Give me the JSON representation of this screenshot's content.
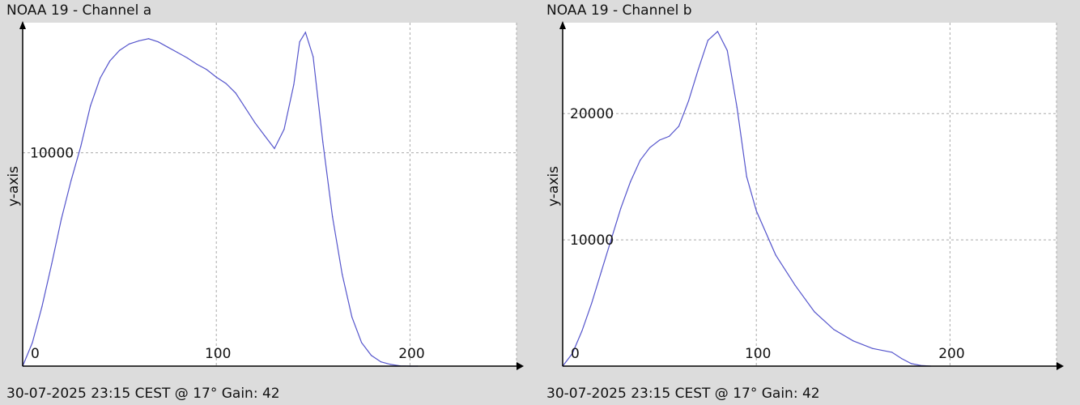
{
  "charts": [
    {
      "title": "NOAA 19 - Channel a",
      "footer": "30-07-2025 23:15 CEST @ 17° Gain: 42"
    },
    {
      "title": "NOAA 19 - Channel b",
      "footer": "30-07-2025 23:15 CEST @ 17° Gain: 42"
    }
  ],
  "colors": {
    "background": "#dcdcdc",
    "plot_area": "#ffffff",
    "line": "#5555cc",
    "grid": "#aaaaaa",
    "axis": "#000000"
  },
  "chart_data": [
    {
      "type": "line",
      "title": "NOAA 19 - Channel a",
      "ylabel": "y-axis",
      "xlabel": "",
      "xlim": [
        0,
        255
      ],
      "ylim": [
        0,
        16100
      ],
      "x_ticks": [
        0,
        100,
        200
      ],
      "y_ticks": [
        10000
      ],
      "grid": true,
      "series": [
        {
          "x": [
            0,
            5,
            10,
            15,
            20,
            25,
            30,
            35,
            40,
            45,
            50,
            55,
            60,
            65,
            70,
            75,
            80,
            85,
            90,
            95,
            100,
            105,
            110,
            115,
            120,
            125,
            130,
            135,
            140,
            143,
            146,
            150,
            155,
            160,
            165,
            170,
            175,
            180,
            185,
            190,
            195,
            200,
            204
          ],
          "values": [
            0,
            1100,
            2800,
            4800,
            6900,
            8700,
            10300,
            12200,
            13500,
            14300,
            14800,
            15100,
            15250,
            15350,
            15200,
            14950,
            14700,
            14450,
            14150,
            13900,
            13550,
            13250,
            12800,
            12100,
            11400,
            10800,
            10200,
            11100,
            13200,
            15200,
            15650,
            14500,
            10500,
            7000,
            4300,
            2300,
            1100,
            500,
            200,
            80,
            10,
            0,
            0
          ]
        }
      ]
    },
    {
      "type": "line",
      "title": "NOAA 19 - Channel b",
      "ylabel": "y-axis",
      "xlabel": "",
      "xlim": [
        0,
        255
      ],
      "ylim": [
        0,
        27200
      ],
      "x_ticks": [
        0,
        100,
        200
      ],
      "y_ticks": [
        10000,
        20000
      ],
      "grid": true,
      "series": [
        {
          "x": [
            0,
            5,
            10,
            15,
            20,
            25,
            30,
            35,
            40,
            45,
            50,
            55,
            60,
            65,
            70,
            75,
            80,
            85,
            90,
            95,
            100,
            110,
            120,
            130,
            140,
            150,
            160,
            170,
            175,
            180,
            185,
            190
          ],
          "values": [
            0,
            1000,
            2800,
            5000,
            7500,
            10000,
            12500,
            14600,
            16300,
            17300,
            17900,
            18200,
            19000,
            21000,
            23500,
            25800,
            26500,
            25000,
            20500,
            15000,
            12300,
            8800,
            6400,
            4300,
            2900,
            2000,
            1400,
            1100,
            600,
            200,
            50,
            0
          ]
        }
      ]
    }
  ]
}
